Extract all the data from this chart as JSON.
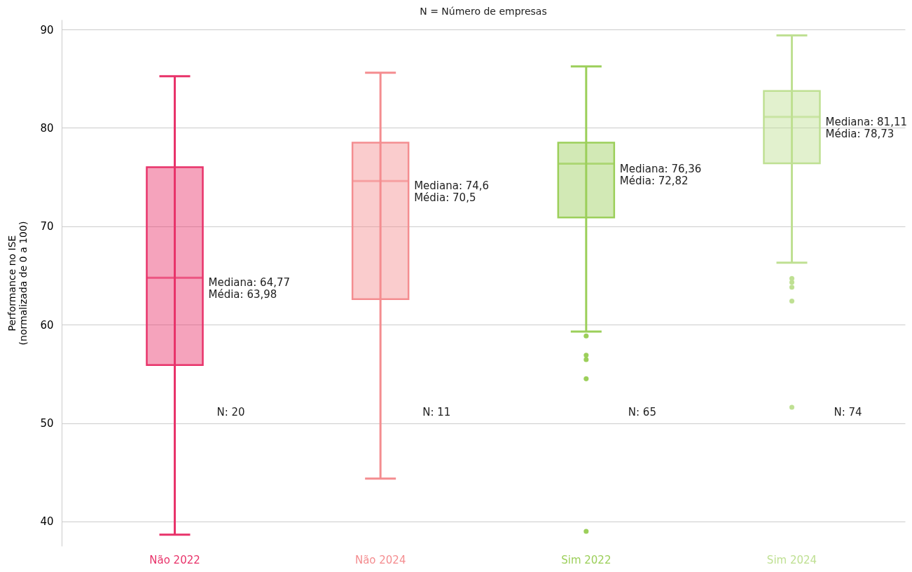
{
  "chart_data": {
    "type": "box",
    "title": "N = Número de empresas",
    "ylabel": "Performance no ISE\n(normalizada de 0 a 100)",
    "categories": [
      "Não 2022",
      "Não 2024",
      "Sim 2022",
      "Sim 2024"
    ],
    "colors": [
      "#e8336a",
      "#f48d90",
      "#9ccf5a",
      "#bfe093"
    ],
    "boxes": [
      {
        "low": 38.65,
        "q1": 55.9,
        "median": 64.77,
        "q3": 76.0,
        "high": 85.25
      },
      {
        "low": 44.35,
        "q1": 62.6,
        "median": 74.6,
        "q3": 78.5,
        "high": 85.6
      },
      {
        "low": 59.3,
        "q1": 70.9,
        "median": 76.36,
        "q3": 78.5,
        "high": 86.25,
        "outliers": [
          58.85,
          56.9,
          56.45,
          54.5,
          39.0
        ]
      },
      {
        "low": 66.3,
        "q1": 76.4,
        "median": 81.11,
        "q3": 83.75,
        "high": 89.4,
        "outliers": [
          64.7,
          64.3,
          63.8,
          62.4,
          51.6
        ]
      }
    ],
    "ylim": [
      37.5,
      91
    ],
    "yticks": [
      40,
      50,
      60,
      70,
      80,
      90
    ],
    "grid": "y",
    "annotations": [
      "Mediana: 64,77\nMédia: 63,98",
      "Mediana: 74,6\nMédia: 70,5",
      "Mediana: 76,36\nMédia: 72,82",
      "Mediana: 81,11\nMédia: 78,73",
      "N: 20",
      "N: 11",
      "N: 65",
      "N: 74"
    ]
  }
}
